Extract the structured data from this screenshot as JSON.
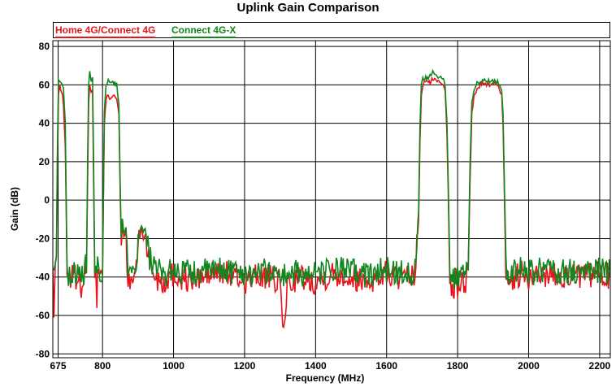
{
  "chart_data": {
    "type": "line",
    "title": "Uplink Gain Comparison",
    "xlabel": "Frequency (MHz)",
    "ylabel": "Gain (dB)",
    "xlim": [
      660,
      2230
    ],
    "ylim": [
      -82,
      83
    ],
    "x_ticks": [
      675,
      800,
      1000,
      1200,
      1400,
      1600,
      1800,
      2000,
      2200
    ],
    "x_tick_labels": [
      "675",
      "800",
      "1000",
      "1200",
      "1400",
      "1600",
      "1800",
      "2000",
      "2200"
    ],
    "y_ticks": [
      -80,
      -60,
      -40,
      -20,
      0,
      20,
      40,
      60,
      80
    ],
    "y_tick_labels": [
      "-80",
      "-60",
      "-40",
      "-20",
      "0",
      "20",
      "40",
      "60",
      "80"
    ],
    "grid": true,
    "legend_placement": "top",
    "series": [
      {
        "name": "Home 4G/Connect 4G",
        "color": "#e8141c",
        "x": [
          660,
          663,
          667,
          670,
          673,
          676,
          680,
          685,
          690,
          695,
          700,
          704,
          707,
          710,
          715,
          720,
          730,
          740,
          750,
          755,
          758,
          761,
          764,
          768,
          772,
          775,
          778,
          781,
          784,
          786,
          790,
          795,
          800,
          805,
          810,
          813,
          816,
          820,
          826,
          832,
          840,
          846,
          850,
          853,
          856,
          860,
          866,
          872,
          880,
          890,
          900,
          910,
          915,
          920,
          930,
          940,
          950,
          955,
          960,
          970,
          990,
          1050,
          1100,
          1150,
          1200,
          1250,
          1300,
          1310,
          1320,
          1350,
          1400,
          1450,
          1500,
          1550,
          1600,
          1650,
          1680,
          1690,
          1694,
          1698,
          1702,
          1710,
          1720,
          1730,
          1740,
          1750,
          1760,
          1765,
          1770,
          1774,
          1778,
          1785,
          1795,
          1805,
          1815,
          1825,
          1830,
          1835,
          1840,
          1846,
          1855,
          1870,
          1890,
          1910,
          1918,
          1924,
          1928,
          1932,
          1936,
          1942,
          1960,
          1980,
          2000,
          2050,
          2100,
          2150,
          2200,
          2230
        ],
        "y": [
          -38,
          -60,
          -32,
          -36,
          20,
          55,
          59,
          57,
          50,
          28,
          -35,
          -40,
          -36,
          -42,
          -40,
          -38,
          -42,
          -44,
          -38,
          -35,
          10,
          52,
          60,
          55,
          58,
          10,
          -40,
          -40,
          -52,
          -38,
          -42,
          -39,
          -38,
          40,
          53,
          55,
          55,
          53,
          54,
          55,
          52,
          45,
          0,
          -25,
          -12,
          -20,
          -15,
          -46,
          -43,
          -40,
          -25,
          -14,
          -20,
          -18,
          -30,
          -36,
          -40,
          -42,
          -38,
          -44,
          -38,
          -42,
          -39,
          -38,
          -42,
          -39,
          -43,
          -70,
          -44,
          -40,
          -42,
          -38,
          -40,
          -42,
          -38,
          -42,
          -39,
          -10,
          30,
          55,
          60,
          62,
          61,
          63,
          62,
          62,
          60,
          58,
          35,
          0,
          -38,
          -50,
          -42,
          -46,
          -41,
          -42,
          -35,
          10,
          45,
          54,
          58,
          61,
          60,
          61,
          58,
          55,
          40,
          0,
          -36,
          -50,
          -40,
          -38,
          -42,
          -38,
          -39,
          -40,
          -38,
          -40
        ]
      },
      {
        "name": "Connect 4G-X",
        "color": "#11861e",
        "x": [
          660,
          663,
          667,
          670,
          673,
          676,
          680,
          685,
          690,
          695,
          700,
          704,
          707,
          710,
          715,
          720,
          730,
          740,
          750,
          755,
          758,
          761,
          764,
          768,
          772,
          775,
          778,
          781,
          784,
          786,
          790,
          795,
          800,
          805,
          810,
          813,
          816,
          820,
          826,
          832,
          840,
          846,
          850,
          853,
          856,
          860,
          866,
          872,
          880,
          890,
          900,
          910,
          915,
          920,
          930,
          940,
          950,
          955,
          960,
          970,
          990,
          1050,
          1100,
          1150,
          1200,
          1250,
          1300,
          1310,
          1320,
          1350,
          1400,
          1450,
          1500,
          1550,
          1600,
          1650,
          1680,
          1690,
          1694,
          1698,
          1702,
          1710,
          1720,
          1730,
          1740,
          1750,
          1760,
          1765,
          1770,
          1774,
          1778,
          1785,
          1795,
          1805,
          1815,
          1825,
          1830,
          1835,
          1840,
          1846,
          1855,
          1870,
          1890,
          1910,
          1918,
          1924,
          1928,
          1932,
          1936,
          1942,
          1960,
          1980,
          2000,
          2050,
          2100,
          2150,
          2200,
          2230
        ],
        "y": [
          -36,
          -42,
          -34,
          -33,
          30,
          63,
          62,
          61,
          58,
          40,
          -33,
          -38,
          -35,
          -40,
          -38,
          -36,
          -40,
          -42,
          -36,
          -33,
          20,
          60,
          66,
          62,
          64,
          20,
          -38,
          -38,
          -44,
          -36,
          -40,
          -37,
          -36,
          45,
          59,
          61,
          62,
          61,
          61,
          61,
          60,
          50,
          5,
          -20,
          -10,
          -17,
          -13,
          -44,
          -40,
          -38,
          -22,
          -13,
          -17,
          -15,
          -28,
          -34,
          -38,
          -40,
          -36,
          -40,
          -36,
          -38,
          -37,
          -36,
          -38,
          -37,
          -38,
          -40,
          -38,
          -38,
          -39,
          -36,
          -37,
          -39,
          -36,
          -38,
          -37,
          -5,
          40,
          60,
          63,
          64,
          64,
          67,
          65,
          64,
          63,
          60,
          40,
          5,
          -34,
          -44,
          -38,
          -40,
          -38,
          -38,
          -32,
          20,
          50,
          58,
          61,
          62,
          62,
          62,
          60,
          58,
          45,
          5,
          -33,
          -42,
          -37,
          -36,
          -38,
          -36,
          -37,
          -38,
          -36,
          -38
        ]
      }
    ]
  }
}
